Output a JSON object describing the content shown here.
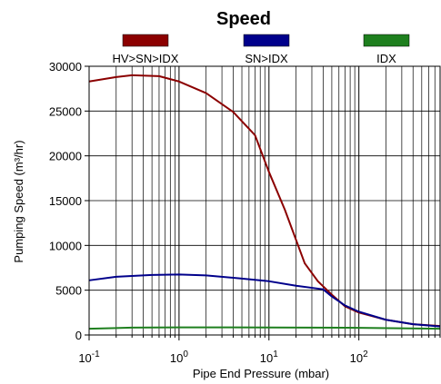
{
  "chart_data": {
    "type": "line",
    "title": "Speed",
    "xlabel": "Pipe End Pressure (mbar)",
    "ylabel": "Pumping Speed (m³/hr)",
    "x_scale": "log",
    "xlim": [
      0.1,
      800
    ],
    "ylim": [
      0,
      30000
    ],
    "grid": true,
    "legend_position": "top",
    "x_tick_labels": [
      {
        "base": "10",
        "exp": "-1",
        "value": 0.1
      },
      {
        "base": "10",
        "exp": "0",
        "value": 1
      },
      {
        "base": "10",
        "exp": "1",
        "value": 10
      },
      {
        "base": "10",
        "exp": "2",
        "value": 100
      }
    ],
    "y_ticks": [
      0,
      5000,
      10000,
      15000,
      20000,
      25000,
      30000
    ],
    "y_tick_labels": [
      "0",
      "5000",
      "10000",
      "15000",
      "20000",
      "25000",
      "30000"
    ],
    "series": [
      {
        "name": "HV>SN>IDX",
        "color": "#8b0000",
        "points": [
          [
            0.1,
            28300
          ],
          [
            0.2,
            28800
          ],
          [
            0.3,
            29000
          ],
          [
            0.6,
            28900
          ],
          [
            1.0,
            28300
          ],
          [
            2.0,
            27000
          ],
          [
            4.0,
            24900
          ],
          [
            7.0,
            22300
          ],
          [
            10.0,
            18200
          ],
          [
            15.0,
            14000
          ],
          [
            25.0,
            8000
          ],
          [
            35.0,
            6000
          ],
          [
            50.0,
            4500
          ],
          [
            70.0,
            3200
          ],
          [
            100.0,
            2500
          ],
          [
            200.0,
            1700
          ],
          [
            400.0,
            1200
          ],
          [
            800.0,
            1000
          ]
        ]
      },
      {
        "name": "SN>IDX",
        "color": "#00008b",
        "points": [
          [
            0.1,
            6100
          ],
          [
            0.2,
            6500
          ],
          [
            0.5,
            6700
          ],
          [
            1.0,
            6750
          ],
          [
            2.0,
            6650
          ],
          [
            5.0,
            6300
          ],
          [
            10.0,
            6000
          ],
          [
            20.0,
            5500
          ],
          [
            40.0,
            5100
          ],
          [
            50.0,
            4300
          ],
          [
            70.0,
            3300
          ],
          [
            100.0,
            2600
          ],
          [
            200.0,
            1700
          ],
          [
            400.0,
            1200
          ],
          [
            800.0,
            950
          ]
        ]
      },
      {
        "name": "IDX",
        "color": "#1e7f1e",
        "points": [
          [
            0.1,
            700
          ],
          [
            0.3,
            820
          ],
          [
            1.0,
            850
          ],
          [
            10.0,
            840
          ],
          [
            100.0,
            800
          ],
          [
            800.0,
            700
          ]
        ]
      }
    ]
  }
}
